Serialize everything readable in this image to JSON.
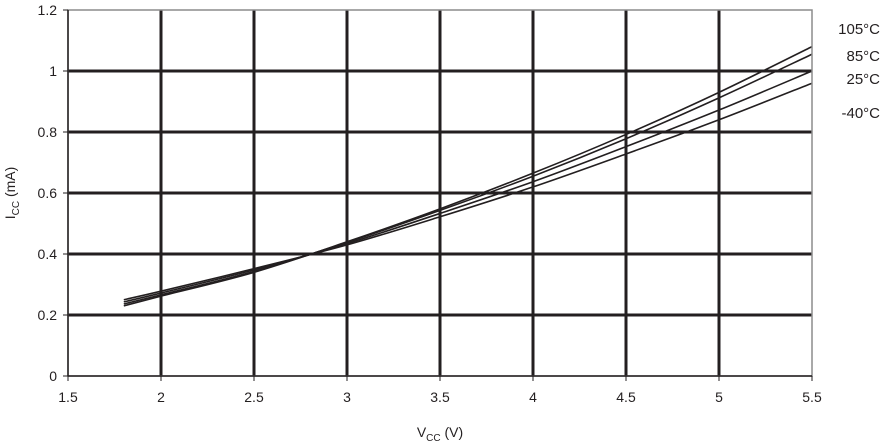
{
  "chart_data": {
    "type": "line",
    "xlabel": {
      "main": "V",
      "sub": "CC",
      "unit": " (V)"
    },
    "ylabel": {
      "main": "I",
      "sub": "CC",
      "unit": " (mA)"
    },
    "xlim": [
      1.5,
      5.5
    ],
    "ylim": [
      0,
      1.2
    ],
    "x_ticks": [
      "1.5",
      "2",
      "2.5",
      "3",
      "3.5",
      "4",
      "4.5",
      "5",
      "5.5"
    ],
    "y_ticks": [
      "0",
      "0.2",
      "0.4",
      "0.6",
      "0.8",
      "1",
      "1.2"
    ],
    "grid": true,
    "legend_placement": "right",
    "x": [
      1.8,
      2.0,
      2.5,
      3.0,
      3.5,
      4.0,
      4.5,
      5.0,
      5.5
    ],
    "series": [
      {
        "name": "105°C",
        "values": [
          0.23,
          0.262,
          0.34,
          0.44,
          0.548,
          0.665,
          0.792,
          0.93,
          1.08
        ]
      },
      {
        "name": "85°C",
        "values": [
          0.236,
          0.266,
          0.343,
          0.438,
          0.543,
          0.655,
          0.778,
          0.912,
          1.055
        ]
      },
      {
        "name": "25°C",
        "values": [
          0.243,
          0.272,
          0.348,
          0.434,
          0.533,
          0.637,
          0.752,
          0.872,
          1.0
        ]
      },
      {
        "name": "-40°C",
        "values": [
          0.25,
          0.278,
          0.352,
          0.43,
          0.522,
          0.62,
          0.728,
          0.84,
          0.96
        ]
      }
    ],
    "colors": {
      "line": "#231f20",
      "grid": "#231f20",
      "border": "#8c8c8c"
    }
  }
}
